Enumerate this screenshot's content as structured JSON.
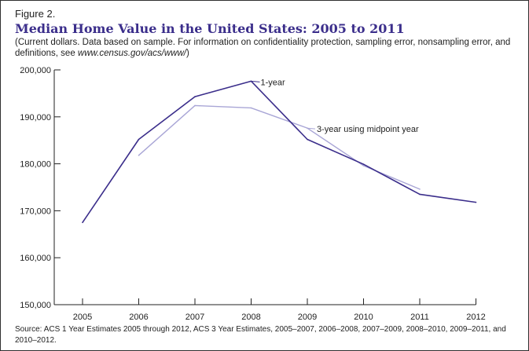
{
  "figure": {
    "label": "Figure 2.",
    "title": "Median Home Value in the United States: 2005 to 2011",
    "subtitle_text": "(Current dollars. Data based on sample. For information on confidentiality protection, sampling error, nonsampling error, and definitions, see ",
    "subtitle_url": "www.census.gov/acs/www/",
    "subtitle_end": ")",
    "source": "Source: ACS 1 Year Estimates 2005 through 2012, ACS 3 Year Estimates, 2005–2007, 2006–2008, 2007–2009, 2008–2010, 2009–2011, and 2010–2012."
  },
  "colors": {
    "series_1year": "#3b2e8b",
    "series_3year": "#a9a6d6",
    "axis": "#222222"
  },
  "chart_data": {
    "type": "line",
    "title": "Median Home Value in the United States: 2005 to 2011",
    "xlabel": "",
    "ylabel": "",
    "x": [
      "2005",
      "2006",
      "2007",
      "2008",
      "2009",
      "2010",
      "2011",
      "2012"
    ],
    "ylim": [
      150000,
      200000
    ],
    "yticks": [
      150000,
      160000,
      170000,
      180000,
      190000,
      200000
    ],
    "ytick_labels": [
      "150,000",
      "160,000",
      "170,000",
      "180,000",
      "190,000",
      "200,000"
    ],
    "grid": false,
    "series": [
      {
        "name": "1-year",
        "values": [
          167500,
          185200,
          194300,
          197600,
          185200,
          179900,
          173500,
          171800
        ]
      },
      {
        "name": "3-year using midpoint year",
        "values": [
          null,
          181800,
          192400,
          191900,
          187600,
          179600,
          174600,
          null
        ]
      }
    ]
  }
}
